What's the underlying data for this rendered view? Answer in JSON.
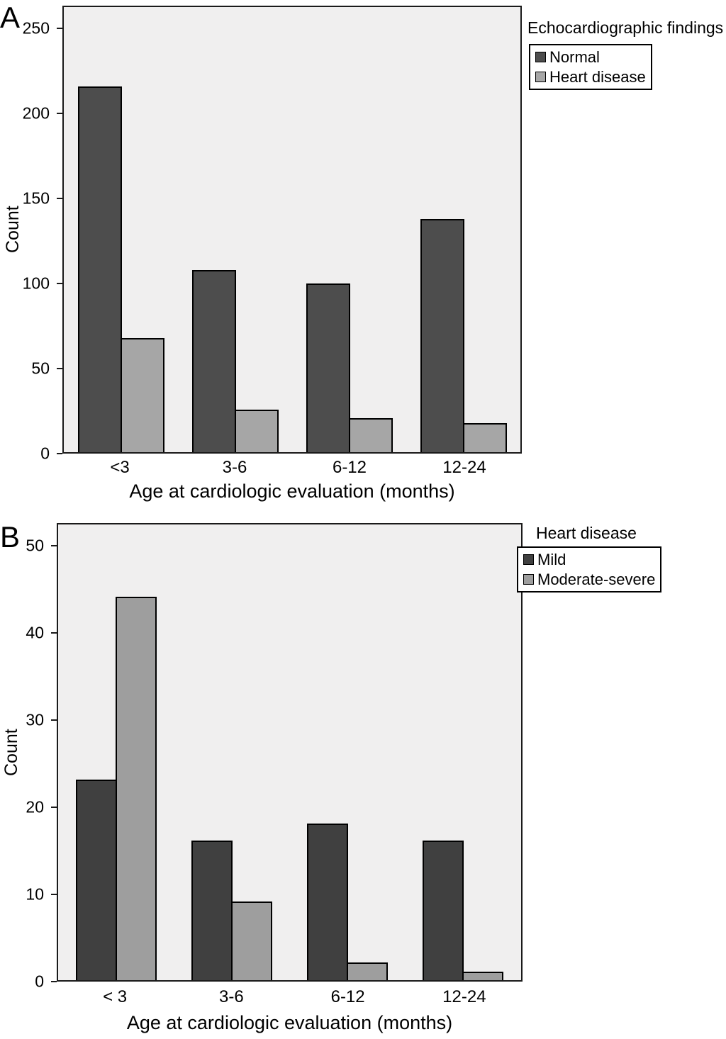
{
  "page_title": "Age at cardiologic evaluation bar charts",
  "chart_data": [
    {
      "type": "bar",
      "panel_label": "A",
      "legend_title": "Echocardiographic findings",
      "legend_position": "top-right-outside",
      "grid": false,
      "ylabel": "Count",
      "xlabel": "Age at cardiologic evaluation (months)",
      "ylim": [
        0,
        250
      ],
      "yticks": [
        0,
        50,
        100,
        150,
        200,
        250
      ],
      "categories": [
        "<3",
        "3-6",
        "6-12",
        "12-24"
      ],
      "series": [
        {
          "name": "Normal",
          "color": "#4d4d4d",
          "values": [
            215,
            107,
            99,
            137
          ]
        },
        {
          "name": "Heart disease",
          "color": "#a6a6a6",
          "values": [
            67,
            25,
            20,
            17
          ]
        }
      ],
      "plot_background": "#f0efef"
    },
    {
      "type": "bar",
      "panel_label": "B",
      "legend_title": "Heart disease",
      "legend_position": "top-right-overlapping",
      "grid": false,
      "ylabel": "Count",
      "xlabel": "Age at cardiologic evaluation (months)",
      "ylim": [
        0,
        50
      ],
      "yticks": [
        0,
        10,
        20,
        30,
        40,
        50
      ],
      "categories": [
        "< 3",
        "3-6",
        "6-12",
        "12-24"
      ],
      "series": [
        {
          "name": "Mild",
          "color": "#404040",
          "values": [
            23,
            16,
            18,
            16
          ]
        },
        {
          "name": "Moderate-severe",
          "color": "#9e9e9e",
          "values": [
            44,
            9,
            2,
            1
          ]
        }
      ],
      "plot_background": "#f0efef"
    }
  ]
}
